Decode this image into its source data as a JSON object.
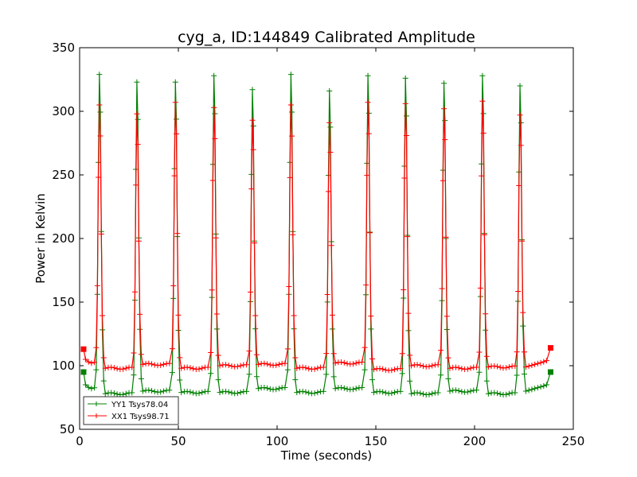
{
  "chart_data": {
    "type": "line",
    "title": "cyg_a, ID:144849 Calibrated Amplitude",
    "xlabel": "Time (seconds)",
    "ylabel": "Power in Kelvin",
    "xlim": [
      0,
      250
    ],
    "ylim": [
      50,
      350
    ],
    "xticks": [
      0,
      50,
      100,
      150,
      200,
      250
    ],
    "yticks": [
      50,
      100,
      150,
      200,
      250,
      300,
      350
    ],
    "grid": false,
    "legend_position": "bottom-left",
    "peak_times": [
      10,
      29,
      48.5,
      68,
      87.5,
      107,
      126.5,
      146,
      165,
      184.5,
      204,
      223
    ],
    "series": [
      {
        "name": "YY1 Tsys78.04",
        "color": "#008000",
        "start_value": 95,
        "end_value": 95,
        "baselines": [
          82,
          78,
          80,
          79,
          79,
          82,
          79,
          82,
          79,
          78,
          80,
          78,
          84
        ],
        "peaks": [
          329,
          323,
          323,
          328,
          317,
          329,
          316,
          328,
          326,
          322,
          328,
          320
        ]
      },
      {
        "name": "XX1 Tsys98.71",
        "color": "#ff0000",
        "start_value": 113,
        "end_value": 114,
        "baselines": [
          102,
          98,
          101,
          98,
          100,
          101,
          98,
          102,
          97,
          100,
          98,
          99,
          103
        ],
        "peaks": [
          305,
          298,
          307,
          303,
          293,
          305,
          291,
          307,
          306,
          302,
          308,
          297
        ]
      }
    ]
  }
}
